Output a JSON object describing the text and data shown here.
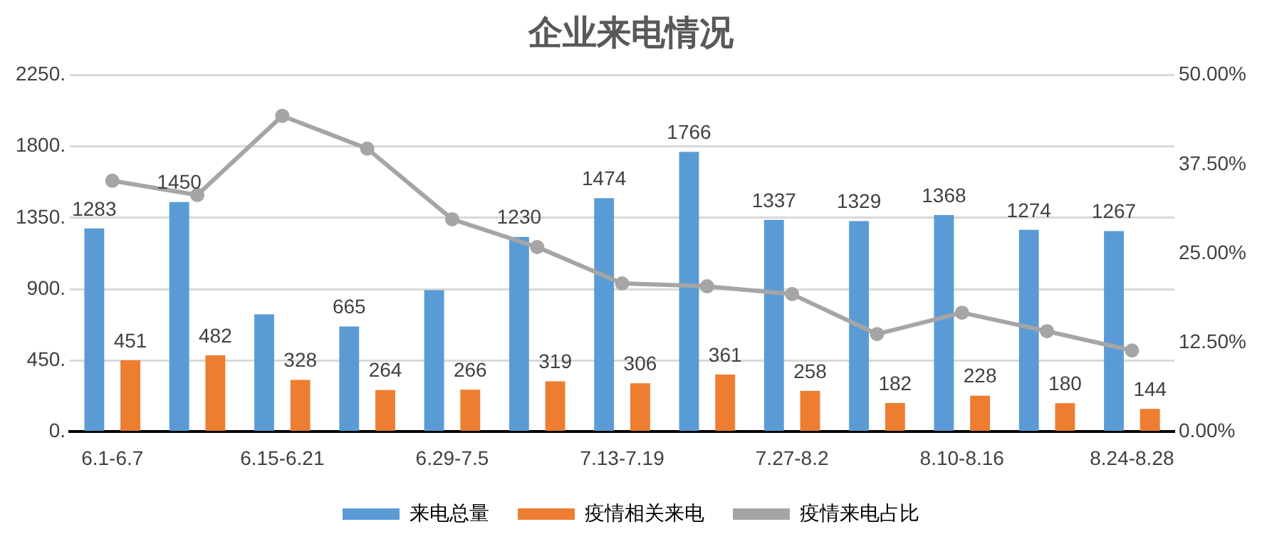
{
  "chart_data": {
    "type": "bar",
    "title": "企业来电情况",
    "categories": [
      "6.1-6.7",
      null,
      "6.15-6.21",
      null,
      "6.29-7.5",
      null,
      "7.13-7.19",
      null,
      "7.27-8.2",
      null,
      "8.10-8.16",
      null,
      "8.24-8.28"
    ],
    "series": [
      {
        "name": "来电总量",
        "color": "#5b9bd5",
        "values": [
          1283,
          1450,
          741,
          665,
          894,
          1230,
          1474,
          1766,
          1337,
          1329,
          1368,
          1274,
          1267
        ],
        "value_labels": [
          "1283",
          "1450",
          null,
          "665",
          null,
          "1230",
          "1474",
          "1766",
          "1337",
          "1329",
          "1368",
          "1274",
          "1267"
        ]
      },
      {
        "name": "疫情相关来电",
        "color": "#ed7d31",
        "values": [
          451,
          482,
          328,
          264,
          266,
          319,
          306,
          361,
          258,
          182,
          228,
          180,
          144
        ],
        "value_labels": [
          "451",
          "482",
          "328",
          "264",
          "266",
          "319",
          "306",
          "361",
          "258",
          "182",
          "228",
          "180",
          "144"
        ]
      },
      {
        "name": "疫情来电占比",
        "type": "line",
        "axis": "y2",
        "color": "#a5a5a5",
        "marker": "circle",
        "values": [
          35.2,
          33.2,
          44.3,
          39.7,
          29.8,
          25.9,
          20.8,
          20.4,
          19.3,
          13.7,
          16.7,
          14.1,
          11.4
        ]
      }
    ],
    "ylim": [
      0,
      2250
    ],
    "yticks": [
      {
        "value": 0,
        "label": "0."
      },
      {
        "value": 450,
        "label": "450."
      },
      {
        "value": 900,
        "label": "900."
      },
      {
        "value": 1350,
        "label": "1350."
      },
      {
        "value": 1800,
        "label": "1800."
      },
      {
        "value": 2250,
        "label": "2250."
      }
    ],
    "y2lim": [
      0,
      50
    ],
    "y2ticks": [
      {
        "value": 0,
        "label": "0.00%"
      },
      {
        "value": 12.5,
        "label": "12.50%"
      },
      {
        "value": 25,
        "label": "25.00%"
      },
      {
        "value": 37.5,
        "label": "37.50%"
      },
      {
        "value": 50,
        "label": "50.00%"
      }
    ],
    "grid": "y",
    "legend": "bottom"
  }
}
